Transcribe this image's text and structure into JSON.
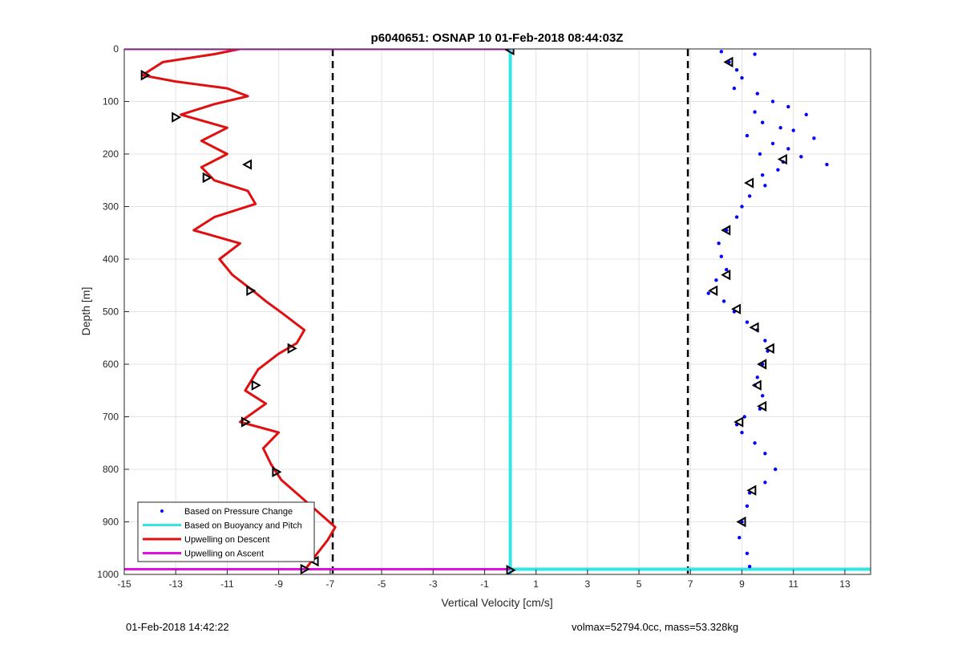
{
  "chart_data": {
    "type": "scatter",
    "title": "p6040651: OSNAP 10 01-Feb-2018 08:44:03Z",
    "xlabel": "Vertical Velocity [cm/s]",
    "ylabel": "Depth [m]",
    "xlim": [
      -15,
      14
    ],
    "ylim": [
      0,
      1000
    ],
    "y_reversed": true,
    "grid": true,
    "xticks": [
      -15,
      -13,
      -11,
      -9,
      -7,
      -5,
      -3,
      -1,
      1,
      3,
      5,
      7,
      9,
      11,
      13
    ],
    "yticks": [
      0,
      100,
      200,
      300,
      400,
      500,
      600,
      700,
      800,
      900,
      1000
    ],
    "legend_position": "bottom-left",
    "legend": [
      {
        "label": "Based on Pressure Change",
        "color": "#0000ff",
        "style": "dot"
      },
      {
        "label": "Based on Buoyancy and Pitch",
        "color": "#33e6e6",
        "style": "line"
      },
      {
        "label": "Upwelling on Descent",
        "color": "#e01010",
        "style": "line"
      },
      {
        "label": "Upwelling on Ascent",
        "color": "#e010e0",
        "style": "line"
      }
    ],
    "reference_lines": [
      {
        "x": -6.9,
        "style": "dashed",
        "color": "#000000"
      },
      {
        "x": 6.9,
        "style": "dashed",
        "color": "#000000"
      }
    ],
    "series": [
      {
        "role": "upwelling-descent",
        "color": "#e01010",
        "points": [
          [
            -10.5,
            0
          ],
          [
            -11.5,
            10
          ],
          [
            -13.5,
            25
          ],
          [
            -14.3,
            50
          ],
          [
            -13.0,
            62
          ],
          [
            -11.0,
            75
          ],
          [
            -10.2,
            90
          ],
          [
            -11.5,
            105
          ],
          [
            -12.8,
            125
          ],
          [
            -11.0,
            150
          ],
          [
            -12.0,
            175
          ],
          [
            -11.0,
            200
          ],
          [
            -12.0,
            225
          ],
          [
            -11.5,
            250
          ],
          [
            -10.2,
            270
          ],
          [
            -9.9,
            295
          ],
          [
            -11.5,
            320
          ],
          [
            -12.3,
            345
          ],
          [
            -10.5,
            370
          ],
          [
            -11.3,
            400
          ],
          [
            -10.8,
            430
          ],
          [
            -10.0,
            460
          ],
          [
            -9.5,
            480
          ],
          [
            -8.8,
            505
          ],
          [
            -8.0,
            535
          ],
          [
            -8.3,
            560
          ],
          [
            -9.0,
            580
          ],
          [
            -9.8,
            610
          ],
          [
            -10.3,
            650
          ],
          [
            -9.5,
            675
          ],
          [
            -10.5,
            710
          ],
          [
            -9.0,
            730
          ],
          [
            -9.6,
            760
          ],
          [
            -9.3,
            790
          ],
          [
            -8.9,
            820
          ],
          [
            -8.2,
            850
          ],
          [
            -7.5,
            880
          ],
          [
            -6.8,
            910
          ],
          [
            -7.1,
            935
          ],
          [
            -7.5,
            960
          ],
          [
            -7.8,
            980
          ],
          [
            -8.0,
            992
          ]
        ]
      },
      {
        "role": "pressure-change",
        "color": "#0000ff",
        "points": [
          [
            8.2,
            5
          ],
          [
            9.5,
            10
          ],
          [
            8.5,
            25
          ],
          [
            8.8,
            40
          ],
          [
            9.0,
            55
          ],
          [
            8.7,
            75
          ],
          [
            9.6,
            85
          ],
          [
            10.2,
            100
          ],
          [
            10.8,
            110
          ],
          [
            9.5,
            120
          ],
          [
            11.5,
            125
          ],
          [
            9.8,
            140
          ],
          [
            10.5,
            150
          ],
          [
            11.0,
            155
          ],
          [
            9.2,
            165
          ],
          [
            11.8,
            170
          ],
          [
            10.2,
            180
          ],
          [
            10.8,
            190
          ],
          [
            9.7,
            200
          ],
          [
            11.3,
            205
          ],
          [
            10.6,
            215
          ],
          [
            12.3,
            220
          ],
          [
            10.4,
            230
          ],
          [
            9.8,
            240
          ],
          [
            9.9,
            260
          ],
          [
            9.3,
            280
          ],
          [
            9.0,
            300
          ],
          [
            8.8,
            320
          ],
          [
            8.4,
            345
          ],
          [
            8.1,
            370
          ],
          [
            8.2,
            395
          ],
          [
            8.4,
            420
          ],
          [
            8.0,
            440
          ],
          [
            7.7,
            465
          ],
          [
            8.3,
            480
          ],
          [
            8.7,
            500
          ],
          [
            9.2,
            520
          ],
          [
            9.6,
            535
          ],
          [
            9.9,
            555
          ],
          [
            10.0,
            575
          ],
          [
            9.8,
            600
          ],
          [
            9.6,
            625
          ],
          [
            9.5,
            640
          ],
          [
            9.8,
            660
          ],
          [
            9.7,
            685
          ],
          [
            9.1,
            700
          ],
          [
            8.8,
            715
          ],
          [
            9.0,
            730
          ],
          [
            9.5,
            750
          ],
          [
            9.9,
            770
          ],
          [
            10.3,
            800
          ],
          [
            9.9,
            825
          ],
          [
            9.3,
            845
          ],
          [
            9.2,
            870
          ],
          [
            9.0,
            900
          ],
          [
            8.9,
            930
          ],
          [
            9.2,
            960
          ],
          [
            9.3,
            985
          ]
        ]
      },
      {
        "role": "buoyancy-pitch",
        "color": "#33e6e6",
        "points": [
          [
            0,
            0
          ],
          [
            0,
            1000
          ]
        ]
      }
    ],
    "upwelling_ascent_lines": [
      {
        "x1": -15,
        "x2": 0,
        "y": 0
      },
      {
        "x1": -15,
        "x2": 0,
        "y": 990
      }
    ],
    "marker_triangles_left": [
      [
        -14.2,
        50
      ],
      [
        -13.0,
        130
      ],
      [
        -11.8,
        245
      ],
      [
        -10.1,
        460
      ],
      [
        -8.5,
        570
      ],
      [
        -9.9,
        640
      ],
      [
        -10.3,
        710
      ],
      [
        -9.1,
        805
      ],
      [
        -8.0,
        990
      ],
      [
        0,
        992
      ]
    ],
    "marker_triangles_right": [
      [
        0,
        2
      ],
      [
        -10.2,
        220
      ],
      [
        -7.6,
        975
      ],
      [
        8.5,
        25
      ],
      [
        10.6,
        210
      ],
      [
        9.3,
        255
      ],
      [
        8.4,
        345
      ],
      [
        8.4,
        430
      ],
      [
        7.9,
        460
      ],
      [
        8.8,
        495
      ],
      [
        9.5,
        530
      ],
      [
        10.1,
        570
      ],
      [
        9.8,
        600
      ],
      [
        9.6,
        640
      ],
      [
        9.8,
        680
      ],
      [
        8.9,
        710
      ],
      [
        9.4,
        840
      ],
      [
        9.0,
        900
      ]
    ]
  },
  "footer": {
    "left": "01-Feb-2018 14:42:22",
    "right": "volmax=52794.0cc, mass=53.328kg"
  }
}
